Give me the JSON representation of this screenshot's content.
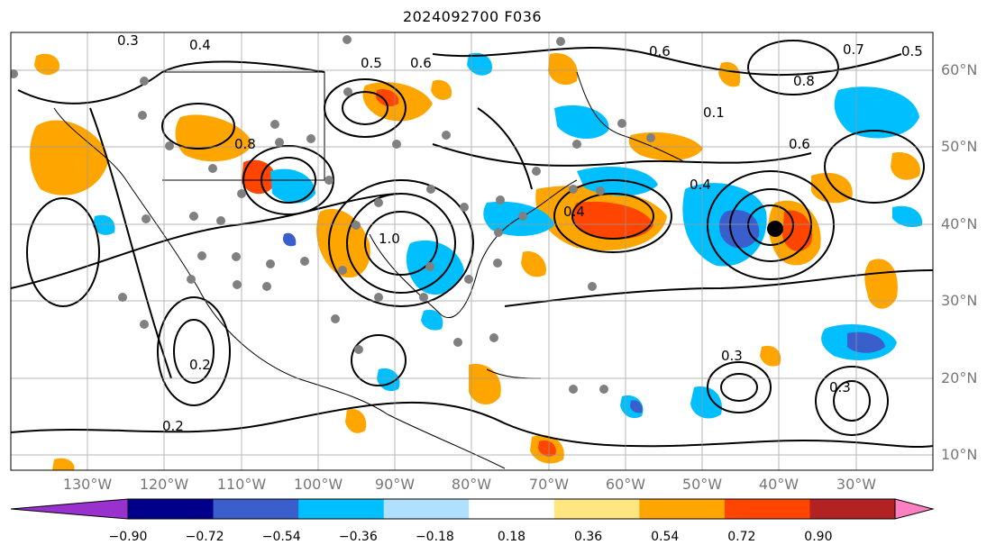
{
  "title": "2024092700 F036",
  "latitude_labels": [
    "60°N",
    "50°N",
    "40°N",
    "30°N",
    "20°N",
    "10°N"
  ],
  "longitude_labels": [
    "130°W",
    "120°W",
    "110°W",
    "100°W",
    "90°W",
    "80°W",
    "70°W",
    "60°W",
    "50°W",
    "40°W",
    "30°W"
  ],
  "contour_labels": [
    "0.3",
    "0.4",
    "0.5",
    "0.6",
    "0.8",
    "1.0",
    "0.2",
    "0.6",
    "0.7",
    "0.8",
    "0.5",
    "0.4",
    "0.6",
    "0.3",
    "0.2",
    "0.4",
    "0.3",
    "0.1"
  ],
  "colorbar": {
    "ticks": [
      "−0.90",
      "−0.72",
      "−0.54",
      "−0.36",
      "−0.18",
      "0.18",
      "0.36",
      "0.54",
      "0.72",
      "0.90"
    ],
    "colors": [
      "#9932cc",
      "#00008b",
      "#3a5fcd",
      "#00bfff",
      "#afe1ff",
      "#ffffff",
      "#ffe680",
      "#ffa500",
      "#ff4500",
      "#b22222",
      "#ff80c0"
    ]
  }
}
